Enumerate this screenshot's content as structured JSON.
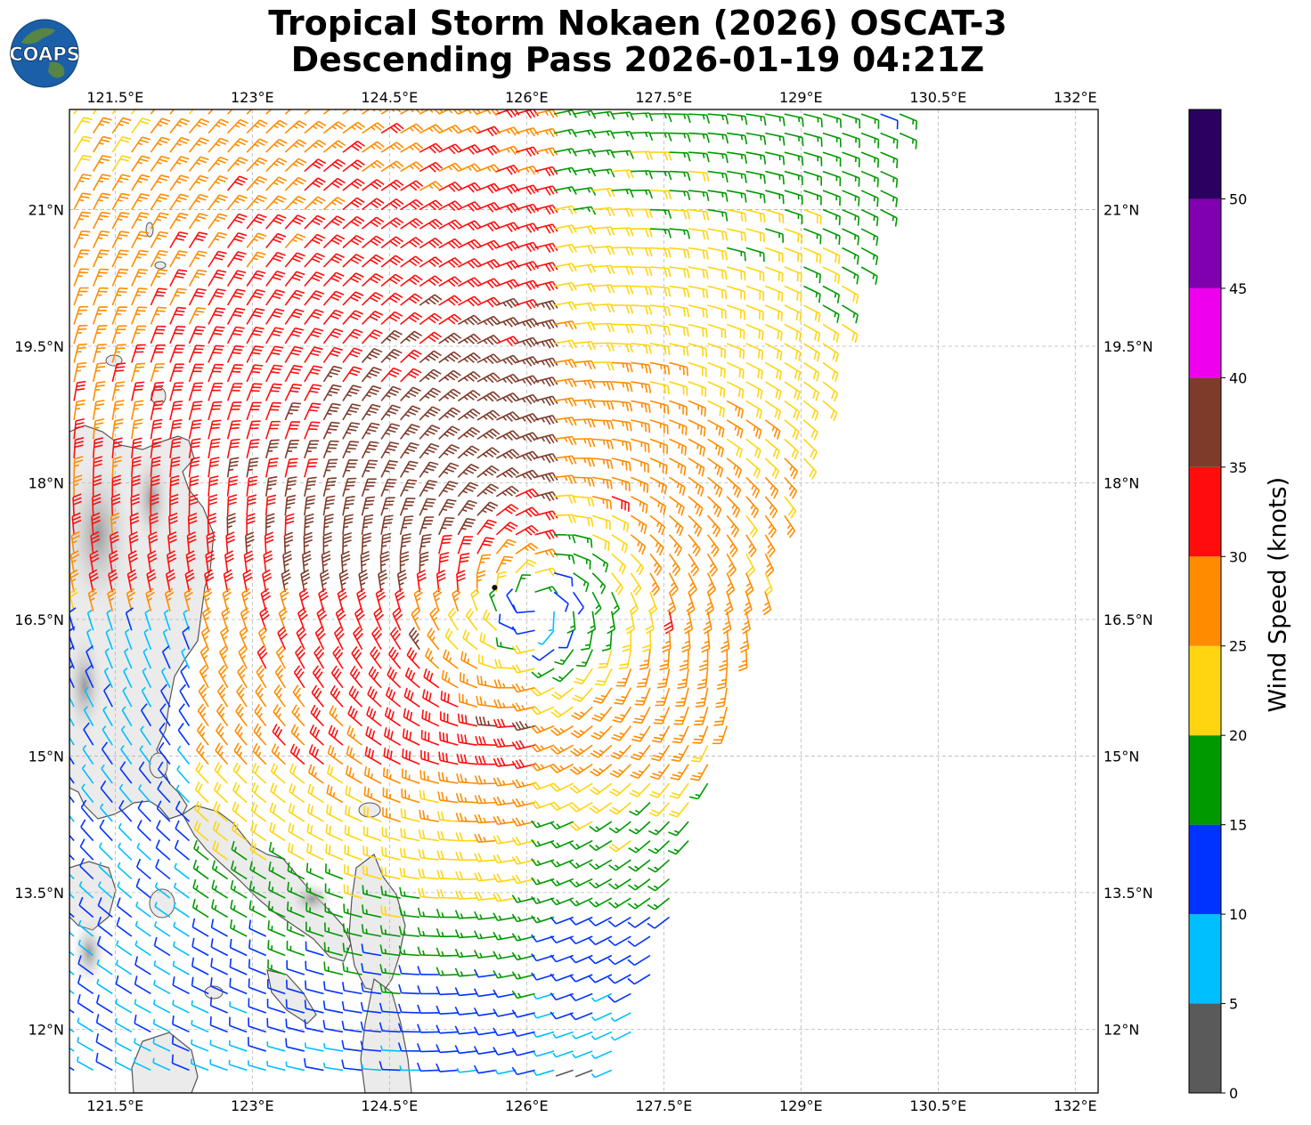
{
  "header": {
    "title_line1": "Tropical Storm Nokaen (2026) OSCAT-3",
    "title_line2": "Descending Pass 2026-01-19 04:21Z",
    "logo_text": "COAPS"
  },
  "map": {
    "lon_labels": [
      "121.5°E",
      "123°E",
      "124.5°E",
      "126°E",
      "127.5°E",
      "129°E",
      "130.5°E",
      "132°E"
    ],
    "lat_labels": [
      "21°N",
      "19.5°N",
      "18°N",
      "16.5°N",
      "15°N",
      "13.5°N",
      "12°N"
    ],
    "lon_range": [
      121.0,
      132.25
    ],
    "lat_range": [
      11.3,
      22.1
    ],
    "storm_center": {
      "lon": 125.65,
      "lat": 16.85
    },
    "swath": {
      "east_edge_top_lon": 130.2,
      "east_edge_bottom_lon": 127.0,
      "description_colors": "wind barbs colored by speed"
    },
    "land_color": "#e8e8e8",
    "coast_color": "#555555"
  },
  "colorbar": {
    "label": "Wind Speed (knots)",
    "ticks": [
      "0",
      "5",
      "10",
      "15",
      "20",
      "25",
      "30",
      "35",
      "40",
      "45",
      "50"
    ],
    "bands": [
      {
        "from": 0,
        "to": 5,
        "color": "#5a5a5a"
      },
      {
        "from": 5,
        "to": 10,
        "color": "#00bfff"
      },
      {
        "from": 10,
        "to": 15,
        "color": "#0033ff"
      },
      {
        "from": 15,
        "to": 20,
        "color": "#009900"
      },
      {
        "from": 20,
        "to": 25,
        "color": "#ffd511"
      },
      {
        "from": 25,
        "to": 30,
        "color": "#ff8c00"
      },
      {
        "from": 30,
        "to": 35,
        "color": "#ff0d0d"
      },
      {
        "from": 35,
        "to": 40,
        "color": "#7f3b2a"
      },
      {
        "from": 40,
        "to": 45,
        "color": "#ee00ee"
      },
      {
        "from": 45,
        "to": 50,
        "color": "#8000b0"
      },
      {
        "from": 50,
        "to": 55,
        "color": "#2a0060"
      }
    ]
  }
}
